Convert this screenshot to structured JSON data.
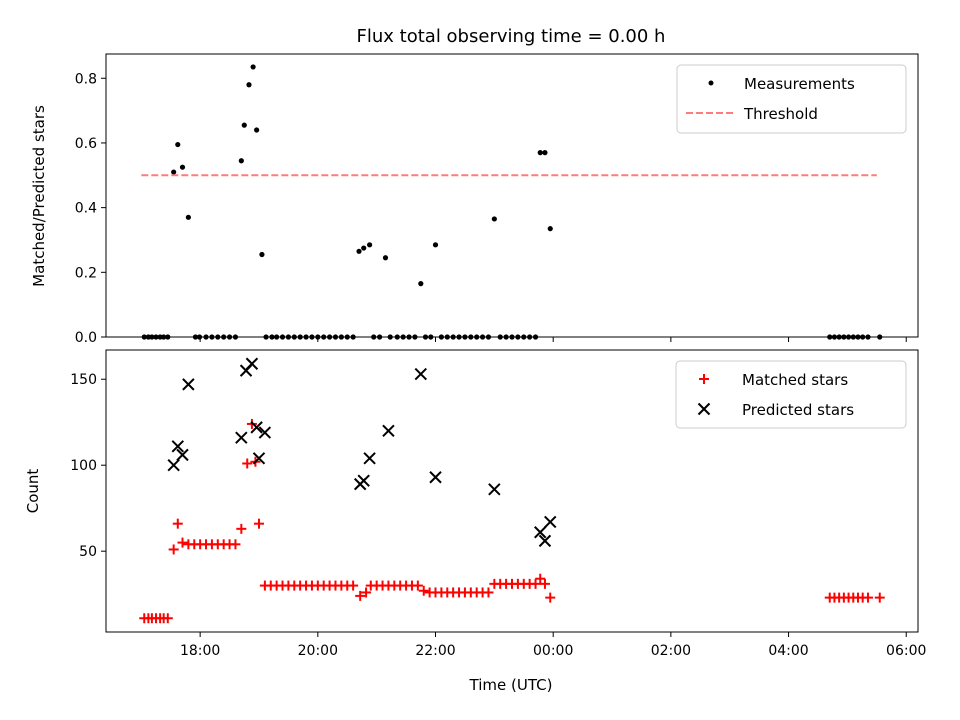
{
  "chart_data": [
    {
      "type": "scatter",
      "title": "Flux total observing time = 0.00 h",
      "xlabel": "",
      "ylabel": "Matched/Predicted stars",
      "ylim": [
        0,
        0.875
      ],
      "yticks": [
        "0.0",
        "0.2",
        "0.4",
        "0.6",
        "0.8"
      ],
      "ytick_values": [
        0,
        0.2,
        0.4,
        0.6,
        0.8
      ],
      "xlim_hours": [
        16.4,
        30.2
      ],
      "xticks": [
        "18:00",
        "20:00",
        "22:00",
        "00:00",
        "02:00",
        "04:00",
        "06:00"
      ],
      "xtick_hours": [
        18,
        20,
        22,
        24,
        26,
        28,
        30
      ],
      "grid": false,
      "legend_position": "top-right",
      "series": [
        {
          "name": "Measurements",
          "color": "#000000",
          "marker": "dot",
          "x_hours": [
            17.05,
            17.12,
            17.18,
            17.25,
            17.32,
            17.38,
            17.45,
            17.55,
            17.62,
            17.7,
            17.8,
            17.92,
            17.99,
            18.1,
            18.2,
            18.3,
            18.4,
            18.5,
            18.6,
            18.7,
            18.75,
            18.83,
            18.9,
            18.96,
            19.05,
            19.12,
            19.22,
            19.3,
            19.4,
            19.5,
            19.6,
            19.7,
            19.8,
            19.9,
            20.0,
            20.1,
            20.2,
            20.3,
            20.4,
            20.5,
            20.6,
            20.7,
            20.78,
            20.88,
            20.95,
            21.05,
            21.15,
            21.23,
            21.35,
            21.45,
            21.55,
            21.65,
            21.75,
            21.83,
            21.92,
            22.0,
            22.1,
            22.2,
            22.3,
            22.4,
            22.5,
            22.6,
            22.7,
            22.8,
            22.9,
            23.0,
            23.1,
            23.2,
            23.3,
            23.4,
            23.5,
            23.6,
            23.7,
            23.78,
            23.86,
            23.95,
            28.7,
            28.78,
            28.86,
            28.94,
            29.02,
            29.1,
            29.18,
            29.26,
            29.35,
            29.55
          ],
          "y": [
            0,
            0,
            0,
            0,
            0,
            0,
            0,
            0.51,
            0.595,
            0.525,
            0.37,
            0,
            0,
            0,
            0,
            0,
            0,
            0,
            0,
            0.545,
            0.655,
            0.78,
            0.835,
            0.64,
            0.255,
            0,
            0,
            0,
            0,
            0,
            0,
            0,
            0,
            0,
            0,
            0,
            0,
            0,
            0,
            0,
            0,
            0.265,
            0.275,
            0.285,
            0,
            0,
            0.245,
            0,
            0,
            0,
            0,
            0,
            0.165,
            0,
            0,
            0.285,
            0,
            0,
            0,
            0,
            0,
            0,
            0,
            0,
            0,
            0.365,
            0,
            0,
            0,
            0,
            0,
            0,
            0,
            0.57,
            0.57,
            0.335,
            0,
            0,
            0,
            0,
            0,
            0,
            0,
            0,
            0,
            0
          ]
        },
        {
          "name": "Threshold",
          "color": "#ff7b7b",
          "style": "dashed",
          "x_hours": [
            17.0,
            29.5
          ],
          "y": [
            0.5,
            0.5
          ]
        }
      ]
    },
    {
      "type": "scatter",
      "title": "",
      "xlabel": "Time (UTC)",
      "ylabel": "Count",
      "ylim": [
        3,
        167
      ],
      "yticks": [
        "50",
        "100",
        "150"
      ],
      "ytick_values": [
        50,
        100,
        150
      ],
      "xlim_hours": [
        16.4,
        30.2
      ],
      "xticks": [
        "18:00",
        "20:00",
        "22:00",
        "00:00",
        "02:00",
        "04:00",
        "06:00"
      ],
      "xtick_hours": [
        18,
        20,
        22,
        24,
        26,
        28,
        30
      ],
      "grid": false,
      "legend_position": "top-right",
      "series": [
        {
          "name": "Matched stars",
          "color": "#ff0000",
          "marker": "plus",
          "x_hours": [
            17.05,
            17.12,
            17.18,
            17.25,
            17.32,
            17.38,
            17.45,
            17.55,
            17.62,
            17.7,
            17.8,
            17.9,
            18.0,
            18.1,
            18.2,
            18.3,
            18.4,
            18.5,
            18.6,
            18.7,
            18.8,
            18.88,
            18.94,
            19.0,
            19.1,
            19.2,
            19.3,
            19.4,
            19.5,
            19.6,
            19.7,
            19.8,
            19.9,
            20.0,
            20.1,
            20.2,
            20.3,
            20.4,
            20.5,
            20.6,
            20.72,
            20.82,
            20.9,
            21.0,
            21.1,
            21.2,
            21.3,
            21.4,
            21.5,
            21.6,
            21.7,
            21.8,
            21.9,
            22.0,
            22.1,
            22.2,
            22.3,
            22.4,
            22.5,
            22.6,
            22.7,
            22.8,
            22.9,
            23.0,
            23.1,
            23.2,
            23.3,
            23.4,
            23.5,
            23.6,
            23.7,
            23.78,
            23.86,
            23.95,
            28.7,
            28.78,
            28.86,
            28.94,
            29.02,
            29.1,
            29.18,
            29.26,
            29.35,
            29.55
          ],
          "y": [
            11,
            11,
            11,
            11,
            11,
            11,
            11,
            51,
            66,
            55,
            54,
            54,
            54,
            54,
            54,
            54,
            54,
            54,
            54,
            63,
            101,
            124,
            102,
            66,
            30,
            30,
            30,
            30,
            30,
            30,
            30,
            30,
            30,
            30,
            30,
            30,
            30,
            30,
            30,
            30,
            24,
            26,
            30,
            30,
            30,
            30,
            30,
            30,
            30,
            30,
            30,
            27,
            26,
            26,
            26,
            26,
            26,
            26,
            26,
            26,
            26,
            26,
            26,
            31,
            31,
            31,
            31,
            31,
            31,
            31,
            31,
            34,
            31,
            23,
            23,
            23,
            23,
            23,
            23,
            23,
            23,
            23,
            23,
            23
          ]
        },
        {
          "name": "Predicted stars",
          "color": "#000000",
          "marker": "x",
          "x_hours": [
            17.55,
            17.62,
            17.7,
            17.8,
            18.7,
            18.78,
            18.88,
            18.96,
            19.0,
            19.1,
            20.72,
            20.78,
            20.88,
            21.2,
            21.75,
            22.0,
            23.0,
            23.78,
            23.86,
            23.95
          ],
          "y": [
            100,
            111,
            106,
            147,
            116,
            155,
            159,
            122,
            104,
            119,
            89,
            91,
            104,
            120,
            153,
            93,
            86,
            61,
            56,
            67
          ]
        }
      ]
    }
  ]
}
